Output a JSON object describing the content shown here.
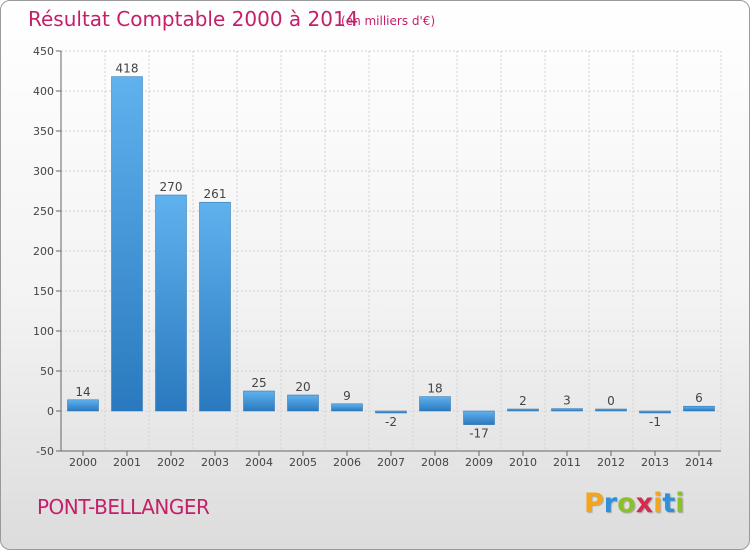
{
  "chart_data": {
    "type": "bar",
    "title": "Résultat Comptable 2000 à 2014",
    "subtitle": "(en milliers d'€)",
    "categories": [
      "2000",
      "2001",
      "2002",
      "2003",
      "2004",
      "2005",
      "2006",
      "2007",
      "2008",
      "2009",
      "2010",
      "2011",
      "2012",
      "2013",
      "2014"
    ],
    "values": [
      14,
      418,
      270,
      261,
      25,
      20,
      9,
      -2,
      18,
      -17,
      2,
      3,
      0,
      -1,
      6
    ],
    "value_labels": [
      "14",
      "418",
      "270",
      "261",
      "25",
      "20",
      "9",
      "-2",
      "18",
      "-17",
      "2",
      "3",
      "0",
      "-1",
      "6"
    ],
    "ylim": [
      -50,
      450
    ],
    "yticks": [
      -50,
      0,
      50,
      100,
      150,
      200,
      250,
      300,
      350,
      400,
      450
    ],
    "xlabel": "",
    "ylabel": "",
    "grid": true,
    "bar_color": "#3b8fd6"
  },
  "footer": {
    "town": "PONT-BELLANGER",
    "logo_letters": [
      "P",
      "r",
      "o",
      "x",
      "i",
      "t",
      "i"
    ],
    "logo_colors": [
      "#f3a51c",
      "#2f8fd8",
      "#8dbf2a",
      "#d62a4e",
      "#f3a51c",
      "#2f8fd8",
      "#8dbf2a"
    ]
  }
}
